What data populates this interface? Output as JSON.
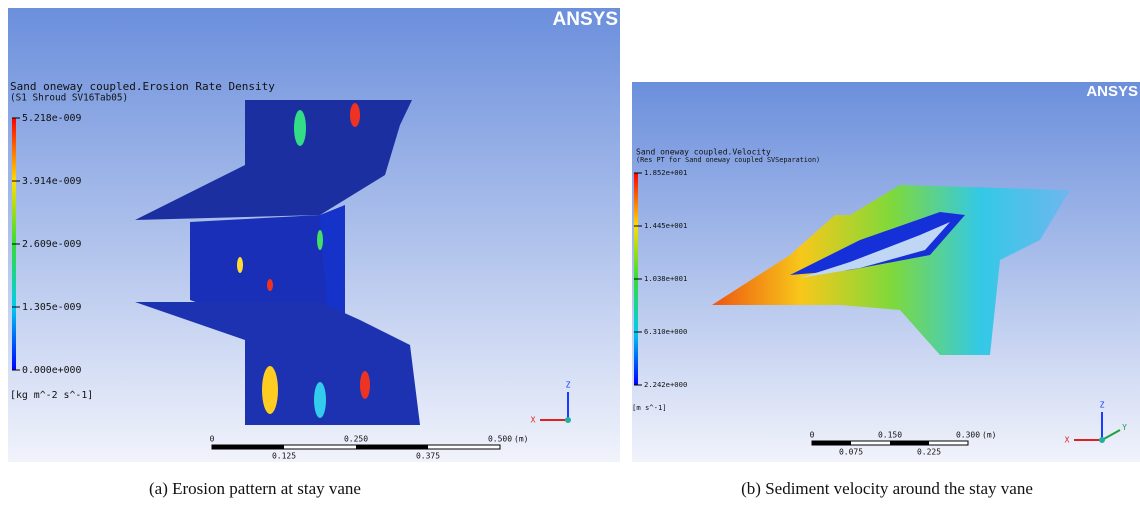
{
  "panels": [
    {
      "logo": "ANSYS",
      "title": "Sand oneway coupled.Erosion Rate Density",
      "subtitle": "(S1 Shroud SV16Tab05)",
      "legend_ticks": [
        "5.218e-009",
        "3.914e-009",
        "2.609e-009",
        "1.305e-009",
        "0.000e+000"
      ],
      "unit": "[kg m^-2 s^-1]",
      "scale_top": [
        "0",
        "0.250",
        "0.500"
      ],
      "scale_bottom": [
        "0.125",
        "0.375"
      ],
      "scale_unit": "(m)",
      "axes": [
        "Z",
        "X"
      ],
      "caption": "(a) Erosion pattern at stay vane"
    },
    {
      "logo": "ANSYS",
      "title": "Sand oneway coupled.Velocity",
      "subtitle": "(Res PT for Sand oneway coupled SVSeparation)",
      "legend_ticks": [
        "1.852e+001",
        "1.445e+001",
        "1.038e+001",
        "6.310e+000",
        "2.242e+000"
      ],
      "unit": "[m s^-1]",
      "scale_top": [
        "0",
        "0.150",
        "0.300"
      ],
      "scale_bottom": [
        "0.075",
        "0.225"
      ],
      "scale_unit": "(m)",
      "axes": [
        "Z",
        "X",
        "Y"
      ],
      "caption": "(b) Sediment velocity around the stay vane"
    }
  ]
}
